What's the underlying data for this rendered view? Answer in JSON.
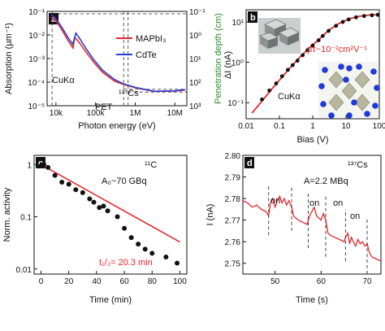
{
  "chart_data": [
    {
      "panel": "a",
      "type": "line",
      "xlabel": "Photon energy (eV)",
      "ylabel": "Absorption (µm⁻¹)",
      "ylabel_right": "Penetration depth (cm)",
      "xscale": "log",
      "yscale": "log",
      "xlim": [
        6000,
        20000000
      ],
      "ylim": [
        1e-05,
        0.1
      ],
      "ylim_right": [
        0.1,
        1000
      ],
      "x_ticks": [
        "10k",
        "100k",
        "1M",
        "10M"
      ],
      "y_ticks": [
        "10⁻⁵",
        "10⁻⁴",
        "10⁻³",
        "10⁻²",
        "10⁻¹"
      ],
      "y_ticks_right": [
        "10⁻¹",
        "10⁰",
        "10¹",
        "10²",
        "10³"
      ],
      "legend": [
        "MAPbI₃",
        "CdTe"
      ],
      "annotations": [
        "CuKα",
        "¹³⁷Cs",
        "PET"
      ],
      "series": [
        {
          "name": "MAPbI₃",
          "color": "#e8262b",
          "x": [
            7500,
            9000,
            12000,
            15000,
            20000,
            27000,
            30000,
            40000,
            60000,
            90000,
            150000,
            300000,
            500000,
            1000000,
            3000000,
            10000000,
            18000000
          ],
          "y": [
            0.055,
            0.05,
            0.025,
            0.014,
            0.006,
            0.0028,
            0.008,
            0.0045,
            0.0017,
            0.0007,
            0.00026,
            0.00011,
            8e-05,
            5.8e-05,
            4e-05,
            4.2e-05,
            4.6e-05
          ]
        },
        {
          "name": "CdTe",
          "color": "#2a3fd6",
          "x": [
            7500,
            9000,
            12000,
            15000,
            20000,
            26500,
            31800,
            40000,
            60000,
            90000,
            150000,
            300000,
            500000,
            1000000,
            3000000,
            10000000,
            18000000
          ],
          "y": [
            0.07,
            0.06,
            0.032,
            0.018,
            0.008,
            0.004,
            0.012,
            0.007,
            0.0024,
            0.0009,
            0.00032,
            0.00013,
            8.5e-05,
            6e-05,
            4.1e-05,
            4.3e-05,
            4.8e-05
          ]
        }
      ]
    },
    {
      "panel": "b",
      "type": "scatter",
      "xlabel": "Bias (V)",
      "ylabel": "ΔI (nA)",
      "xscale": "log",
      "yscale": "log",
      "xlim": [
        0.01,
        100
      ],
      "ylim": [
        0.04,
        20
      ],
      "x_ticks": [
        "0.01",
        "0.1",
        "1",
        "10",
        "100"
      ],
      "y_ticks": [
        "10⁻¹",
        "10⁰",
        "10¹"
      ],
      "annotations": [
        "μτ~10⁻²cm²V⁻¹",
        "CuKα"
      ],
      "series": [
        {
          "name": "data",
          "x": [
            0.03,
            0.05,
            0.08,
            0.12,
            0.18,
            0.25,
            0.35,
            0.5,
            0.7,
            1.0,
            1.5,
            2,
            3,
            5,
            8,
            12,
            20,
            35,
            60,
            90
          ],
          "y": [
            0.12,
            0.2,
            0.3,
            0.45,
            0.65,
            0.85,
            1.1,
            1.5,
            2.0,
            2.6,
            3.5,
            4.5,
            6.0,
            8.0,
            10.0,
            11.5,
            13.0,
            14.0,
            14.6,
            15.0
          ]
        },
        {
          "name": "fit",
          "x": [
            0.015,
            0.03,
            0.06,
            0.1,
            0.2,
            0.4,
            0.8,
            1.5,
            3,
            6,
            12,
            25,
            50,
            100
          ],
          "y": [
            0.055,
            0.11,
            0.22,
            0.36,
            0.7,
            1.3,
            2.3,
            3.6,
            6.2,
            9.0,
            11.8,
            13.8,
            14.8,
            15.2
          ]
        }
      ]
    },
    {
      "panel": "c",
      "type": "scatter",
      "xlabel": "Time (min)",
      "ylabel": "Norm. activity",
      "yscale": "log",
      "xlim": [
        -5,
        105
      ],
      "ylim": [
        0.008,
        1.5
      ],
      "x_ticks": [
        "0",
        "20",
        "40",
        "60",
        "80",
        "100"
      ],
      "y_ticks": [
        "0.01",
        "0.1",
        "1"
      ],
      "annotations": [
        "¹¹C",
        "A₀~70 GBq",
        "t₁/₂= 20.3 min"
      ],
      "series": [
        {
          "name": "data",
          "x": [
            0,
            2,
            5,
            10,
            15,
            20,
            25,
            30,
            35,
            38,
            42,
            45,
            48,
            55,
            60,
            65,
            70,
            75,
            80,
            90,
            98
          ],
          "y": [
            0.95,
            1.0,
            0.88,
            0.62,
            0.46,
            0.42,
            0.33,
            0.29,
            0.22,
            0.19,
            0.15,
            0.16,
            0.13,
            0.1,
            0.06,
            0.04,
            0.03,
            0.024,
            0.02,
            0.017,
            0.013
          ]
        },
        {
          "name": "fit",
          "x": [
            0,
            100
          ],
          "y": [
            1.0,
            0.0328
          ]
        }
      ]
    },
    {
      "panel": "d",
      "type": "line",
      "xlabel": "Time (s)",
      "ylabel": "I (nA)",
      "xlim": [
        43,
        73
      ],
      "ylim": [
        2.745,
        2.8
      ],
      "x_ticks": [
        "50",
        "60",
        "70"
      ],
      "y_ticks": [
        "2.75",
        "2.76",
        "2.77",
        "2.78",
        "2.79",
        "2.80"
      ],
      "annotations": [
        "¹³⁷Cs",
        "A=2.2 MBq",
        "on",
        "on",
        "on",
        "on"
      ],
      "series": [
        {
          "name": "current",
          "x": [
            43,
            44,
            45,
            46,
            47,
            48,
            48.6,
            49,
            49.5,
            50,
            50.5,
            51,
            51.5,
            52,
            52.5,
            53,
            53.6,
            54,
            55,
            56,
            57,
            57.2,
            57.5,
            58,
            58.5,
            59,
            59.5,
            60,
            60.5,
            61,
            61.5,
            62,
            63,
            64,
            65,
            65.3,
            65.8,
            66.2,
            66.6,
            67,
            67.5,
            68,
            68.5,
            69,
            69.5,
            70,
            70.5,
            71,
            72,
            73
          ],
          "y": [
            2.779,
            2.778,
            2.776,
            2.777,
            2.775,
            2.774,
            2.772,
            2.778,
            2.78,
            2.776,
            2.779,
            2.781,
            2.778,
            2.78,
            2.777,
            2.779,
            2.776,
            2.772,
            2.77,
            2.769,
            2.768,
            2.77,
            2.772,
            2.774,
            2.776,
            2.772,
            2.771,
            2.77,
            2.773,
            2.77,
            2.764,
            2.763,
            2.762,
            2.761,
            2.76,
            2.762,
            2.764,
            2.759,
            2.762,
            2.76,
            2.758,
            2.761,
            2.759,
            2.76,
            2.758,
            2.759,
            2.755,
            2.753,
            2.752,
            2.751
          ]
        }
      ]
    }
  ]
}
